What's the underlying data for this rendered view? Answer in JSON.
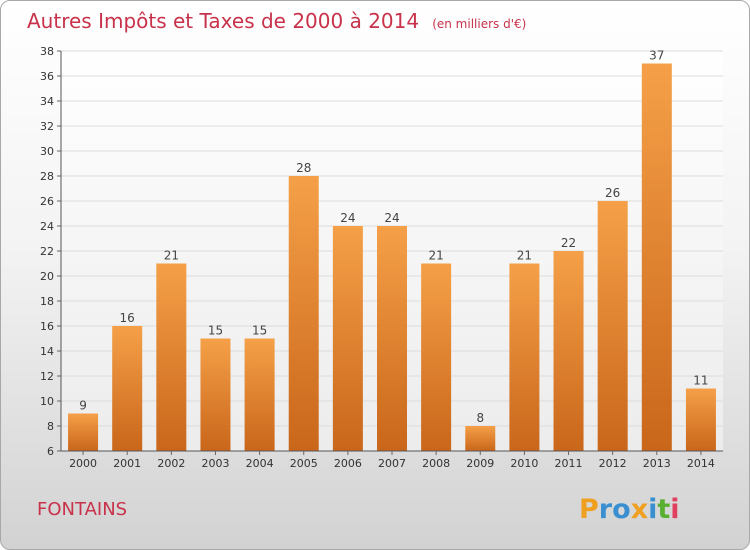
{
  "chart_data": {
    "type": "bar",
    "title": "Autres Impôts et Taxes de 2000 à 2014",
    "subtitle": "(en milliers d'€)",
    "categories": [
      "2000",
      "2001",
      "2002",
      "2003",
      "2004",
      "2005",
      "2006",
      "2007",
      "2008",
      "2009",
      "2010",
      "2011",
      "2012",
      "2013",
      "2014"
    ],
    "values": [
      9,
      16,
      21,
      15,
      15,
      28,
      24,
      24,
      21,
      8,
      21,
      22,
      26,
      37,
      11
    ],
    "ylim": [
      6,
      38
    ],
    "yticks": [
      6,
      8,
      10,
      12,
      14,
      16,
      18,
      20,
      22,
      24,
      26,
      28,
      30,
      32,
      34,
      36,
      38
    ],
    "grid": true,
    "bar_color": "#f5a048",
    "bar_color_dark": "#c9661a"
  },
  "place": "FONTAINS",
  "brand": {
    "text": "Proxiti",
    "letters": [
      "P",
      "r",
      "o",
      "x",
      "i",
      "t",
      "i"
    ],
    "colors": [
      "#f0a020",
      "#3a8fd0",
      "#3a8fd0",
      "#f0a020",
      "#3a8fd0",
      "#58b030",
      "#e04060"
    ]
  }
}
